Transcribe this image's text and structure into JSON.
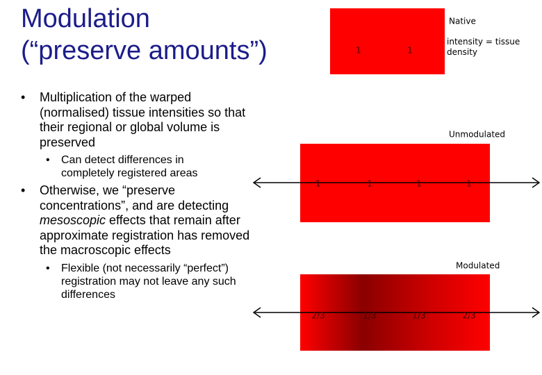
{
  "title": [
    "Modulation",
    "(“preserve amounts”)"
  ],
  "bullets": [
    {
      "text": [
        "Multiplication of the warped (normalised) tissue intensities so that their regional or global volume is preserved"
      ],
      "sub": [
        "Can detect differences in completely registered areas"
      ]
    },
    {
      "text": [
        "Otherwise, we “preserve concentrations”, and are detecting ",
        "mesoscopic",
        " effects that remain after approximate registration has removed the macroscopic effects"
      ],
      "sub": [
        "Flexible (not necessarily “perfect”) registration may not leave any such differences"
      ]
    }
  ],
  "diagrams": {
    "native": {
      "label": "Native",
      "note": "intensity = tissue density",
      "values": [
        "1",
        "1"
      ]
    },
    "unmodulated": {
      "label": "Unmodulated",
      "values": [
        "1",
        "1",
        "1",
        "1"
      ]
    },
    "modulated": {
      "label": "Modulated",
      "values": [
        "2/3",
        "1/3",
        "1/3",
        "2/3"
      ]
    }
  }
}
